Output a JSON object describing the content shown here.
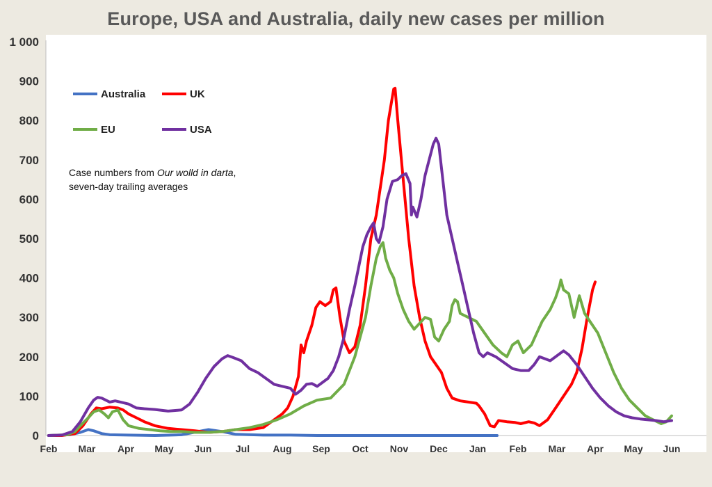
{
  "chart_data": {
    "type": "line",
    "title": "Europe, USA and Australia, daily new cases per million",
    "xlabel": "",
    "ylabel": "",
    "x_ticks": [
      "Feb",
      "Mar",
      "Apr",
      "May",
      "Jun",
      "Jul",
      "Aug",
      "Sep",
      "Oct",
      "Nov",
      "Dec",
      "Jan",
      "Feb",
      "Mar",
      "Apr",
      "May",
      "Jun"
    ],
    "y_ticks": [
      "0",
      "100",
      "200",
      "300",
      "400",
      "500",
      "600",
      "700",
      "800",
      "900",
      "1 000"
    ],
    "ylim": [
      0,
      1000
    ],
    "grid": "none",
    "legend_position": "top-left",
    "annotation": {
      "line1_prefix": "Case numbers from ",
      "line1_italic": "Our wolld in darta",
      "line1_suffix": ",",
      "line2": "seven-day trailing averages"
    },
    "series": [
      {
        "name": "Australia",
        "color": "#4472c4",
        "points": [
          [
            0,
            0
          ],
          [
            0.8,
            2
          ],
          [
            1.2,
            8
          ],
          [
            1.5,
            15
          ],
          [
            1.7,
            12
          ],
          [
            2.0,
            5
          ],
          [
            2.3,
            2
          ],
          [
            3,
            1
          ],
          [
            4,
            0
          ],
          [
            5,
            2
          ],
          [
            6,
            15
          ],
          [
            6.5,
            10
          ],
          [
            7,
            3
          ],
          [
            8,
            1
          ],
          [
            9,
            1
          ],
          [
            10,
            0
          ],
          [
            11,
            0
          ],
          [
            12,
            0
          ],
          [
            13,
            0
          ],
          [
            14,
            0
          ],
          [
            15,
            0
          ],
          [
            16,
            0
          ],
          [
            16.65,
            0
          ]
        ]
      },
      {
        "name": "UK",
        "color": "#ff0000",
        "points": [
          [
            0,
            0
          ],
          [
            0.5,
            0
          ],
          [
            1.0,
            5
          ],
          [
            1.3,
            25
          ],
          [
            1.6,
            55
          ],
          [
            1.8,
            70
          ],
          [
            2.0,
            68
          ],
          [
            2.3,
            72
          ],
          [
            2.6,
            70
          ],
          [
            2.8,
            65
          ],
          [
            3.0,
            55
          ],
          [
            3.3,
            45
          ],
          [
            3.6,
            35
          ],
          [
            4.0,
            25
          ],
          [
            4.5,
            18
          ],
          [
            5,
            15
          ],
          [
            5.5,
            12
          ],
          [
            6,
            8
          ],
          [
            6.5,
            10
          ],
          [
            7,
            15
          ],
          [
            7.5,
            15
          ],
          [
            8,
            20
          ],
          [
            8.3,
            35
          ],
          [
            8.7,
            55
          ],
          [
            8.9,
            70
          ],
          [
            9.1,
            100
          ],
          [
            9.3,
            150
          ],
          [
            9.4,
            230
          ],
          [
            9.5,
            210
          ],
          [
            9.6,
            240
          ],
          [
            9.8,
            280
          ],
          [
            9.95,
            325
          ],
          [
            10.1,
            340
          ],
          [
            10.3,
            330
          ],
          [
            10.5,
            340
          ],
          [
            10.6,
            370
          ],
          [
            10.7,
            375
          ],
          [
            10.85,
            300
          ],
          [
            11.0,
            240
          ],
          [
            11.2,
            210
          ],
          [
            11.4,
            225
          ],
          [
            11.6,
            280
          ],
          [
            11.8,
            380
          ],
          [
            12.0,
            500
          ],
          [
            12.2,
            560
          ],
          [
            12.35,
            630
          ],
          [
            12.5,
            700
          ],
          [
            12.65,
            800
          ],
          [
            12.8,
            860
          ],
          [
            12.85,
            880
          ],
          [
            12.9,
            882
          ],
          [
            13.0,
            800
          ],
          [
            13.2,
            650
          ],
          [
            13.4,
            500
          ],
          [
            13.6,
            380
          ],
          [
            13.8,
            300
          ],
          [
            14.0,
            240
          ],
          [
            14.2,
            200
          ],
          [
            14.4,
            180
          ],
          [
            14.6,
            160
          ],
          [
            14.8,
            120
          ],
          [
            15.0,
            95
          ],
          [
            15.3,
            88
          ],
          [
            15.6,
            85
          ],
          [
            15.9,
            82
          ],
          [
            16.0,
            75
          ],
          [
            16.2,
            55
          ],
          [
            16.3,
            40
          ],
          [
            16.4,
            25
          ],
          [
            16.55,
            22
          ],
          [
            16.7,
            38
          ],
          [
            17.0,
            35
          ],
          [
            17.3,
            33
          ],
          [
            17.5,
            30
          ],
          [
            17.8,
            35
          ],
          [
            18.0,
            32
          ],
          [
            18.2,
            25
          ],
          [
            18.5,
            40
          ],
          [
            18.8,
            70
          ],
          [
            19.1,
            100
          ],
          [
            19.4,
            130
          ],
          [
            19.6,
            160
          ],
          [
            19.8,
            220
          ],
          [
            20.0,
            300
          ],
          [
            20.2,
            370
          ],
          [
            20.3,
            390
          ]
        ]
      },
      {
        "name": "EU",
        "color": "#70ad47",
        "points": [
          [
            0,
            0
          ],
          [
            0.7,
            2
          ],
          [
            1.0,
            10
          ],
          [
            1.2,
            25
          ],
          [
            1.5,
            45
          ],
          [
            1.7,
            60
          ],
          [
            1.9,
            65
          ],
          [
            2.1,
            55
          ],
          [
            2.25,
            45
          ],
          [
            2.4,
            60
          ],
          [
            2.6,
            65
          ],
          [
            2.8,
            40
          ],
          [
            3.0,
            25
          ],
          [
            3.4,
            18
          ],
          [
            3.8,
            15
          ],
          [
            4.2,
            12
          ],
          [
            4.6,
            10
          ],
          [
            5,
            10
          ],
          [
            5.5,
            8
          ],
          [
            6,
            8
          ],
          [
            6.5,
            10
          ],
          [
            7,
            15
          ],
          [
            7.5,
            20
          ],
          [
            8,
            28
          ],
          [
            8.5,
            40
          ],
          [
            9,
            55
          ],
          [
            9.5,
            75
          ],
          [
            10,
            90
          ],
          [
            10.5,
            95
          ],
          [
            11,
            130
          ],
          [
            11.4,
            200
          ],
          [
            11.8,
            300
          ],
          [
            12.0,
            380
          ],
          [
            12.2,
            450
          ],
          [
            12.35,
            480
          ],
          [
            12.45,
            490
          ],
          [
            12.55,
            450
          ],
          [
            12.7,
            420
          ],
          [
            12.85,
            400
          ],
          [
            13.0,
            360
          ],
          [
            13.2,
            320
          ],
          [
            13.4,
            290
          ],
          [
            13.6,
            270
          ],
          [
            13.8,
            285
          ],
          [
            14.0,
            300
          ],
          [
            14.2,
            295
          ],
          [
            14.35,
            250
          ],
          [
            14.5,
            240
          ],
          [
            14.7,
            270
          ],
          [
            14.9,
            290
          ],
          [
            15.0,
            330
          ],
          [
            15.1,
            345
          ],
          [
            15.2,
            340
          ],
          [
            15.3,
            310
          ],
          [
            15.6,
            300
          ],
          [
            15.9,
            290
          ],
          [
            16.2,
            260
          ],
          [
            16.5,
            230
          ],
          [
            16.8,
            210
          ],
          [
            17.0,
            200
          ],
          [
            17.2,
            230
          ],
          [
            17.4,
            240
          ],
          [
            17.6,
            210
          ],
          [
            17.9,
            230
          ],
          [
            18.1,
            260
          ],
          [
            18.3,
            290
          ],
          [
            18.6,
            320
          ],
          [
            18.8,
            350
          ],
          [
            18.95,
            380
          ],
          [
            19.0,
            395
          ],
          [
            19.1,
            370
          ],
          [
            19.3,
            360
          ],
          [
            19.5,
            300
          ],
          [
            19.7,
            355
          ],
          [
            19.9,
            310
          ],
          [
            20.1,
            290
          ],
          [
            20.4,
            260
          ],
          [
            20.7,
            210
          ],
          [
            21.0,
            160
          ],
          [
            21.3,
            120
          ],
          [
            21.6,
            90
          ],
          [
            21.9,
            70
          ],
          [
            22.2,
            50
          ],
          [
            22.5,
            40
          ],
          [
            22.8,
            30
          ],
          [
            23.0,
            35
          ],
          [
            23.2,
            50
          ]
        ]
      },
      {
        "name": "USA",
        "color": "#7030a0",
        "points": [
          [
            0,
            0
          ],
          [
            0.5,
            1
          ],
          [
            0.9,
            10
          ],
          [
            1.2,
            35
          ],
          [
            1.5,
            70
          ],
          [
            1.7,
            90
          ],
          [
            1.85,
            97
          ],
          [
            2.0,
            95
          ],
          [
            2.3,
            85
          ],
          [
            2.5,
            88
          ],
          [
            2.7,
            85
          ],
          [
            3.0,
            80
          ],
          [
            3.3,
            70
          ],
          [
            3.6,
            68
          ],
          [
            4.0,
            66
          ],
          [
            4.5,
            62
          ],
          [
            5,
            65
          ],
          [
            5.3,
            80
          ],
          [
            5.6,
            110
          ],
          [
            5.9,
            145
          ],
          [
            6.2,
            175
          ],
          [
            6.5,
            195
          ],
          [
            6.7,
            203
          ],
          [
            6.9,
            198
          ],
          [
            7.2,
            190
          ],
          [
            7.5,
            170
          ],
          [
            7.8,
            160
          ],
          [
            8.1,
            145
          ],
          [
            8.4,
            130
          ],
          [
            8.7,
            125
          ],
          [
            9.0,
            120
          ],
          [
            9.2,
            105
          ],
          [
            9.4,
            115
          ],
          [
            9.6,
            130
          ],
          [
            9.8,
            132
          ],
          [
            10.0,
            125
          ],
          [
            10.2,
            135
          ],
          [
            10.4,
            145
          ],
          [
            10.6,
            165
          ],
          [
            10.8,
            200
          ],
          [
            11.0,
            250
          ],
          [
            11.2,
            320
          ],
          [
            11.4,
            380
          ],
          [
            11.55,
            430
          ],
          [
            11.7,
            480
          ],
          [
            11.85,
            510
          ],
          [
            12.0,
            530
          ],
          [
            12.1,
            540
          ],
          [
            12.2,
            500
          ],
          [
            12.3,
            490
          ],
          [
            12.45,
            530
          ],
          [
            12.6,
            600
          ],
          [
            12.8,
            645
          ],
          [
            13.0,
            650
          ],
          [
            13.15,
            660
          ],
          [
            13.3,
            665
          ],
          [
            13.45,
            640
          ],
          [
            13.5,
            560
          ],
          [
            13.55,
            580
          ],
          [
            13.7,
            555
          ],
          [
            13.85,
            600
          ],
          [
            14.0,
            660
          ],
          [
            14.15,
            700
          ],
          [
            14.3,
            740
          ],
          [
            14.4,
            755
          ],
          [
            14.5,
            740
          ],
          [
            14.6,
            680
          ],
          [
            14.8,
            560
          ],
          [
            15.0,
            500
          ],
          [
            15.2,
            440
          ],
          [
            15.4,
            380
          ],
          [
            15.6,
            320
          ],
          [
            15.8,
            260
          ],
          [
            16.0,
            210
          ],
          [
            16.15,
            200
          ],
          [
            16.3,
            210
          ],
          [
            16.6,
            200
          ],
          [
            16.9,
            185
          ],
          [
            17.2,
            170
          ],
          [
            17.5,
            165
          ],
          [
            17.8,
            165
          ],
          [
            18.0,
            180
          ],
          [
            18.2,
            200
          ],
          [
            18.4,
            195
          ],
          [
            18.6,
            190
          ],
          [
            18.8,
            200
          ],
          [
            19.0,
            210
          ],
          [
            19.1,
            215
          ],
          [
            19.3,
            205
          ],
          [
            19.6,
            180
          ],
          [
            19.9,
            150
          ],
          [
            20.2,
            120
          ],
          [
            20.5,
            95
          ],
          [
            20.8,
            75
          ],
          [
            21.1,
            60
          ],
          [
            21.4,
            50
          ],
          [
            21.7,
            45
          ],
          [
            22.0,
            42
          ],
          [
            22.3,
            40
          ],
          [
            22.6,
            38
          ],
          [
            22.9,
            35
          ],
          [
            23.2,
            38
          ]
        ]
      }
    ]
  }
}
